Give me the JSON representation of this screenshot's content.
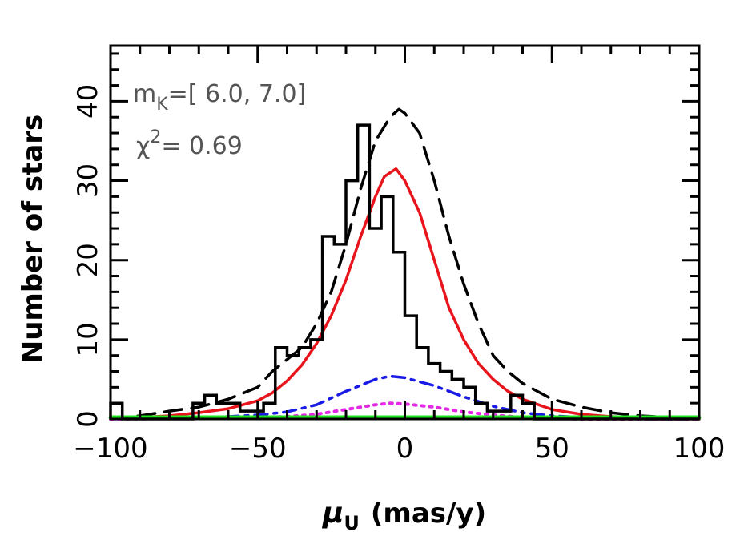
{
  "chart_data": {
    "type": "line",
    "xlim": [
      -100,
      100
    ],
    "ylim": [
      0,
      47
    ],
    "xticks": [
      -100,
      -50,
      0,
      50,
      100
    ],
    "xtick_labels": [
      "−100",
      "−50",
      "0",
      "50",
      "100"
    ],
    "yticks": [
      0,
      10,
      20,
      30,
      40
    ],
    "ytick_labels": [
      "0",
      "10",
      "20",
      "30",
      "40"
    ],
    "xlabel": {
      "symbol": "μ",
      "sub": "U",
      "text": "(mas/y)"
    },
    "ylabel": "Number of stars",
    "grid": false,
    "annotations": {
      "mag_label": "m",
      "mag_sub": "K",
      "mag_range": "=[ 6.0, 7.0]",
      "chi_label": "χ",
      "chi_sup": "2",
      "chi_value": "= 0.69"
    },
    "histogram": {
      "name": "",
      "color": "#000000",
      "bin_width": 4,
      "bin_start": -100,
      "counts": [
        2,
        0,
        0,
        0,
        0,
        0,
        0,
        2,
        3,
        2,
        2,
        1,
        1,
        2,
        9,
        8,
        9,
        10,
        23,
        22,
        30,
        37,
        24,
        28,
        21,
        13,
        9,
        7,
        6,
        5,
        4,
        2,
        1,
        1,
        3,
        2,
        0,
        0,
        0,
        0,
        0,
        0,
        0,
        0,
        0,
        0,
        0,
        0,
        0,
        0
      ]
    },
    "series": [
      {
        "style": "dashed",
        "color": "#000000",
        "x": [
          -100,
          -90,
          -80,
          -70,
          -60,
          -50,
          -45,
          -40,
          -35,
          -30,
          -25,
          -20,
          -15,
          -10,
          -5,
          -2,
          0,
          5,
          10,
          15,
          20,
          25,
          30,
          35,
          40,
          50,
          60,
          70,
          80,
          90,
          100
        ],
        "y": [
          0.1,
          0.4,
          1,
          1.5,
          2.5,
          4,
          6,
          7.5,
          9,
          12,
          16,
          22,
          29,
          35,
          38,
          39,
          38.5,
          36,
          30,
          23,
          17,
          12,
          8,
          6,
          4.5,
          2.5,
          1.5,
          0.8,
          0.4,
          0.2,
          0.1
        ]
      },
      {
        "style": "solid",
        "color": "#e8141c",
        "x": [
          -100,
          -90,
          -80,
          -70,
          -60,
          -50,
          -45,
          -40,
          -35,
          -30,
          -25,
          -20,
          -15,
          -10,
          -7,
          -3,
          0,
          5,
          10,
          15,
          20,
          25,
          30,
          35,
          40,
          50,
          60,
          70,
          80,
          90,
          100
        ],
        "y": [
          0.1,
          0.2,
          0.4,
          0.8,
          1.3,
          2.3,
          3.3,
          4.8,
          6.8,
          9.5,
          13,
          17.5,
          23,
          28,
          30.5,
          31.5,
          30,
          26,
          20,
          14,
          10,
          7,
          5,
          3.5,
          2.5,
          1.2,
          0.6,
          0.3,
          0.2,
          0.1,
          0
        ]
      },
      {
        "style": "dashdot",
        "color": "#1a1ae6",
        "x": [
          -100,
          -80,
          -60,
          -50,
          -40,
          -30,
          -20,
          -10,
          -5,
          0,
          10,
          20,
          30,
          40,
          50,
          60,
          80,
          100
        ],
        "y": [
          0,
          0.1,
          0.3,
          0.5,
          0.9,
          1.8,
          3.5,
          5,
          5.4,
          5.2,
          4.2,
          2.8,
          1.6,
          0.8,
          0.4,
          0.2,
          0,
          0
        ]
      },
      {
        "style": "dotted",
        "color": "#e628e6",
        "x": [
          -100,
          -60,
          -40,
          -30,
          -20,
          -10,
          -5,
          0,
          10,
          20,
          30,
          40,
          60,
          100
        ],
        "y": [
          0,
          0.1,
          0.3,
          0.6,
          1.2,
          1.8,
          2,
          1.9,
          1.5,
          0.9,
          0.5,
          0.2,
          0,
          0
        ]
      },
      {
        "style": "solid-thick",
        "color": "#1ee61e",
        "x": [
          -100,
          100
        ],
        "y": [
          0.2,
          0.2
        ]
      }
    ]
  }
}
